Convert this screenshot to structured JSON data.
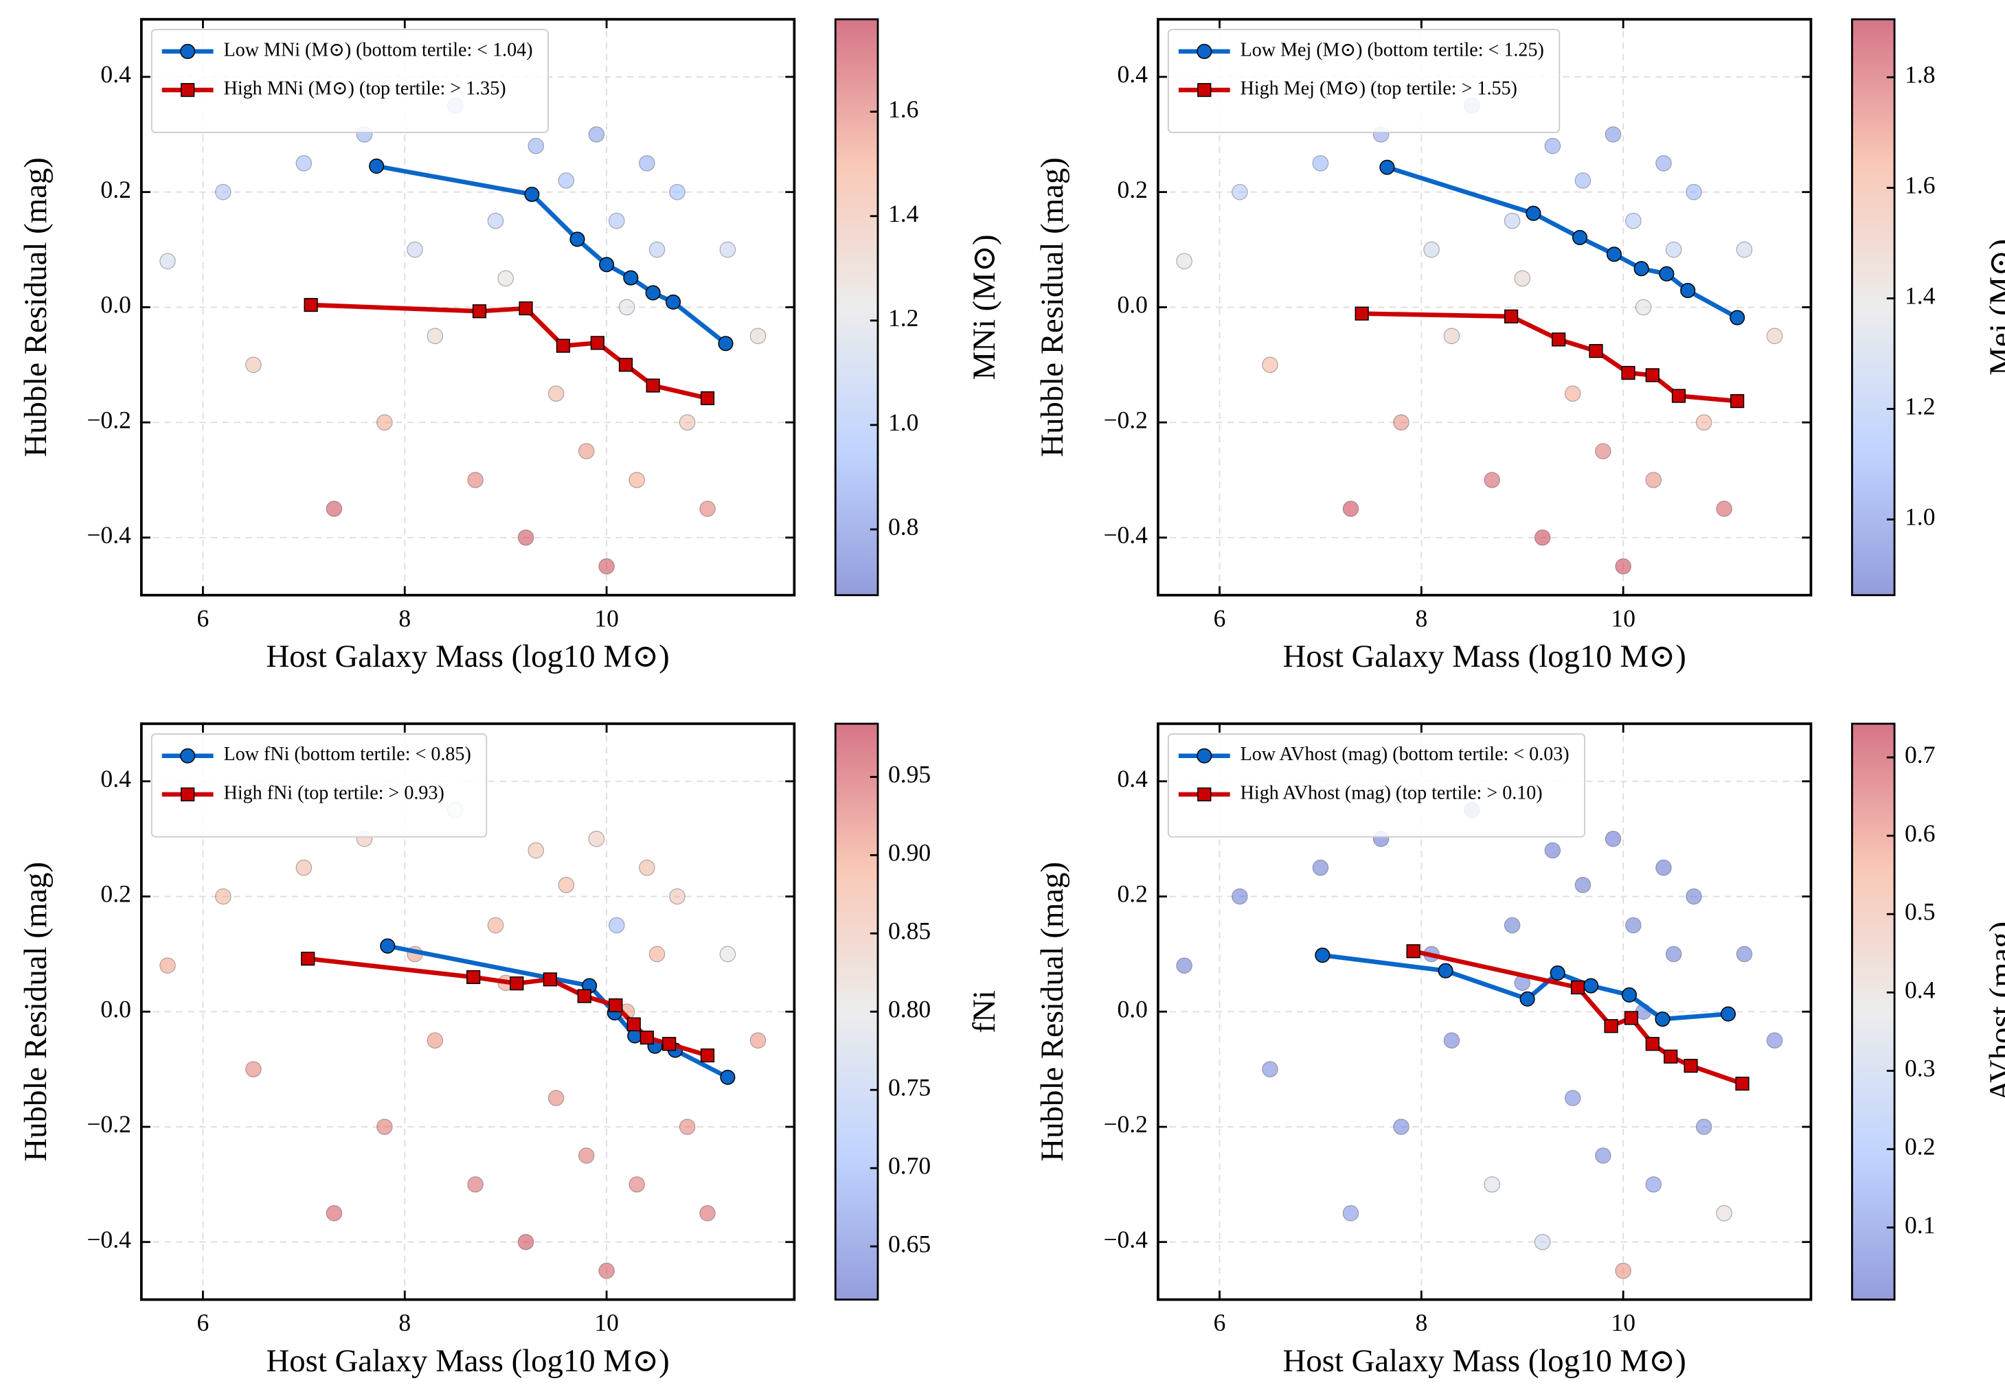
{
  "chart_data": [
    {
      "type": "scatter",
      "xlabel": "Host Galaxy Mass (log10 M⊙)",
      "ylabel": "Hubble Residual (mag)",
      "colorbar_label": "MNi (M⊙)",
      "xlim": [
        5.39,
        11.86
      ],
      "ylim": [
        -0.5,
        0.5
      ],
      "xticks": [
        6,
        8,
        10
      ],
      "yticks": [
        {
          "value": -0.4,
          "label": "−0.4"
        },
        {
          "value": -0.2,
          "label": "−0.2"
        },
        {
          "value": 0,
          "label": "0.0"
        },
        0.2,
        0.4
      ],
      "clim": [
        0.674,
        1.777
      ],
      "cticks": [
        0.8,
        {
          "value": 1,
          "label": "1.0"
        },
        1.2,
        1.4,
        1.6
      ],
      "colormap": "coolwarm",
      "grid": true,
      "legend": "upper left",
      "points": {
        "x": [
          5.65,
          6.2,
          6.5,
          7.0,
          7.3,
          7.6,
          7.8,
          8.1,
          8.3,
          8.5,
          8.7,
          8.9,
          9.0,
          9.2,
          9.3,
          9.5,
          9.6,
          9.8,
          9.9,
          10.0,
          10.1,
          10.2,
          10.3,
          10.4,
          10.5,
          10.7,
          10.8,
          11.0,
          11.2,
          11.5
        ],
        "y": [
          0.08,
          0.2,
          -0.1,
          0.25,
          -0.35,
          0.3,
          -0.2,
          0.1,
          -0.05,
          0.35,
          -0.3,
          0.15,
          0.05,
          -0.4,
          0.28,
          -0.15,
          0.22,
          -0.25,
          0.3,
          -0.45,
          0.15,
          0.0,
          -0.3,
          0.25,
          0.1,
          0.2,
          -0.2,
          -0.35,
          0.1,
          -0.05
        ],
        "c": [
          1.15,
          1.0,
          1.4,
          0.95,
          1.7,
          0.9,
          1.5,
          1.1,
          1.3,
          0.85,
          1.6,
          1.05,
          1.25,
          1.7,
          0.9,
          1.45,
          0.95,
          1.55,
          0.85,
          1.7,
          1.0,
          1.2,
          1.5,
          0.9,
          1.05,
          0.95,
          1.4,
          1.6,
          1.1,
          1.3
        ]
      },
      "series": [
        {
          "name": "Low MNi (M⊙) (bottom tertile: < 1.04)",
          "color": "#0a66c8",
          "marker": "circle",
          "x": [
            7.72,
            9.26,
            9.71,
            10.0,
            10.24,
            10.46,
            10.66,
            11.18
          ],
          "values": [
            0.245,
            0.196,
            0.118,
            0.074,
            0.051,
            0.025,
            0.009,
            -0.063
          ]
        },
        {
          "name": "High MNi (M⊙) (top tertile: > 1.35)",
          "color": "#cc0000",
          "marker": "square",
          "x": [
            7.07,
            8.74,
            9.2,
            9.57,
            9.91,
            10.19,
            10.46,
            11.0
          ],
          "values": [
            0.004,
            -0.007,
            -0.002,
            -0.067,
            -0.062,
            -0.1,
            -0.136,
            -0.158
          ]
        }
      ]
    },
    {
      "type": "scatter",
      "xlabel": "Host Galaxy Mass (log10 M⊙)",
      "ylabel": "Hubble Residual (mag)",
      "colorbar_label": "Mej (M⊙)",
      "xlim": [
        5.39,
        11.86
      ],
      "ylim": [
        -0.5,
        0.5
      ],
      "xticks": [
        6,
        8,
        10
      ],
      "yticks": [
        {
          "value": -0.4,
          "label": "−0.4"
        },
        {
          "value": -0.2,
          "label": "−0.2"
        },
        {
          "value": 0,
          "label": "0.0"
        },
        0.2,
        0.4
      ],
      "clim": [
        0.863,
        1.905
      ],
      "cticks": [
        {
          "value": 1,
          "label": "1.0"
        },
        1.2,
        1.4,
        1.6,
        1.8
      ],
      "colormap": "coolwarm",
      "grid": true,
      "legend": "upper left",
      "points": {
        "x": [
          5.65,
          6.2,
          6.5,
          7.0,
          7.3,
          7.6,
          7.8,
          8.1,
          8.3,
          8.5,
          8.7,
          8.9,
          9.0,
          9.2,
          9.3,
          9.5,
          9.6,
          9.8,
          9.9,
          10.0,
          10.1,
          10.2,
          10.3,
          10.4,
          10.5,
          10.7,
          10.8,
          11.0,
          11.2,
          11.5
        ],
        "y": [
          0.08,
          0.2,
          -0.1,
          0.25,
          -0.35,
          0.3,
          -0.2,
          0.1,
          -0.05,
          0.35,
          -0.3,
          0.15,
          0.05,
          -0.4,
          0.28,
          -0.15,
          0.22,
          -0.25,
          0.3,
          -0.45,
          0.15,
          0.0,
          -0.3,
          0.25,
          0.1,
          0.2,
          -0.2,
          -0.35,
          0.1,
          -0.05
        ],
        "c": [
          1.4,
          1.2,
          1.6,
          1.1,
          1.85,
          1.05,
          1.7,
          1.3,
          1.5,
          1.0,
          1.8,
          1.25,
          1.45,
          1.85,
          1.05,
          1.65,
          1.1,
          1.75,
          1.0,
          1.85,
          1.2,
          1.4,
          1.7,
          1.05,
          1.25,
          1.1,
          1.6,
          1.8,
          1.3,
          1.5
        ]
      },
      "series": [
        {
          "name": "Low Mej (M⊙) (bottom tertile: < 1.25)",
          "color": "#0a66c8",
          "marker": "circle",
          "x": [
            7.66,
            9.11,
            9.57,
            9.91,
            10.18,
            10.43,
            10.64,
            11.13
          ],
          "values": [
            0.243,
            0.163,
            0.121,
            0.092,
            0.067,
            0.058,
            0.029,
            -0.018
          ]
        },
        {
          "name": "High Mej (M⊙) (top tertile: > 1.55)",
          "color": "#cc0000",
          "marker": "square",
          "x": [
            7.41,
            8.89,
            9.36,
            9.73,
            10.05,
            10.29,
            10.55,
            11.13
          ],
          "values": [
            -0.011,
            -0.016,
            -0.056,
            -0.076,
            -0.114,
            -0.118,
            -0.154,
            -0.163
          ]
        }
      ]
    },
    {
      "type": "scatter",
      "xlabel": "Host Galaxy Mass (log10 M⊙)",
      "ylabel": "Hubble Residual (mag)",
      "colorbar_label": "fNi",
      "xlim": [
        5.39,
        11.86
      ],
      "ylim": [
        -0.5,
        0.5
      ],
      "xticks": [
        6,
        8,
        10
      ],
      "yticks": [
        {
          "value": -0.4,
          "label": "−0.4"
        },
        {
          "value": -0.2,
          "label": "−0.2"
        },
        {
          "value": 0,
          "label": "0.0"
        },
        0.2,
        0.4
      ],
      "clim": [
        0.616,
        0.984
      ],
      "cticks": [
        0.65,
        {
          "value": 0.7,
          "label": "0.70"
        },
        0.75,
        {
          "value": 0.8,
          "label": "0.80"
        },
        0.85,
        {
          "value": 0.9,
          "label": "0.90"
        },
        0.95
      ],
      "colormap": "coolwarm",
      "grid": true,
      "legend": "upper left",
      "points": {
        "x": [
          5.65,
          6.2,
          6.5,
          7.0,
          7.3,
          7.6,
          7.8,
          8.1,
          8.3,
          8.5,
          8.7,
          8.9,
          9.0,
          9.2,
          9.3,
          9.5,
          9.6,
          9.8,
          9.9,
          10.0,
          10.1,
          10.2,
          10.3,
          10.4,
          10.5,
          10.7,
          10.8,
          11.0,
          11.2,
          11.5
        ],
        "y": [
          0.08,
          0.2,
          -0.1,
          0.25,
          -0.35,
          0.3,
          -0.2,
          0.1,
          -0.05,
          0.35,
          -0.3,
          0.15,
          0.05,
          -0.4,
          0.28,
          -0.15,
          0.22,
          -0.25,
          0.3,
          -0.45,
          0.15,
          0.0,
          -0.3,
          0.25,
          0.1,
          0.2,
          -0.2,
          -0.35,
          0.1,
          -0.05
        ],
        "c": [
          0.9,
          0.88,
          0.92,
          0.87,
          0.95,
          0.85,
          0.93,
          0.9,
          0.91,
          0.78,
          0.94,
          0.89,
          0.9,
          0.96,
          0.86,
          0.92,
          0.88,
          0.93,
          0.84,
          0.95,
          0.7,
          0.9,
          0.93,
          0.87,
          0.89,
          0.86,
          0.92,
          0.94,
          0.8,
          0.91
        ]
      },
      "series": [
        {
          "name": "Low fNi (bottom tertile: < 0.85)",
          "color": "#0a66c8",
          "marker": "circle",
          "x": [
            7.83,
            9.83,
            10.08,
            10.28,
            10.48,
            10.68,
            11.2
          ],
          "values": [
            0.114,
            0.045,
            -0.002,
            -0.042,
            -0.06,
            -0.067,
            -0.114
          ]
        },
        {
          "name": "High fNi (top tertile: > 0.93)",
          "color": "#cc0000",
          "marker": "square",
          "x": [
            7.04,
            8.68,
            9.11,
            9.44,
            9.78,
            10.09,
            10.27,
            10.4,
            10.62,
            11.0
          ],
          "values": [
            0.092,
            0.06,
            0.049,
            0.056,
            0.027,
            0.011,
            -0.022,
            -0.045,
            -0.056,
            -0.076
          ]
        }
      ]
    },
    {
      "type": "scatter",
      "xlabel": "Host Galaxy Mass (log10 M⊙)",
      "ylabel": "Hubble Residual (mag)",
      "colorbar_label": "AVhost (mag)",
      "xlim": [
        5.39,
        11.86
      ],
      "ylim": [
        -0.5,
        0.5
      ],
      "xticks": [
        6,
        8,
        10
      ],
      "yticks": [
        {
          "value": -0.4,
          "label": "−0.4"
        },
        {
          "value": -0.2,
          "label": "−0.2"
        },
        {
          "value": 0,
          "label": "0.0"
        },
        0.2,
        0.4
      ],
      "clim": [
        0.008,
        0.743
      ],
      "cticks": [
        0.1,
        0.2,
        0.3,
        0.4,
        0.5,
        0.6,
        0.7
      ],
      "colormap": "coolwarm",
      "grid": true,
      "legend": "upper left",
      "points": {
        "x": [
          5.65,
          6.2,
          6.5,
          7.0,
          7.3,
          7.6,
          7.8,
          8.1,
          8.3,
          8.5,
          8.7,
          8.9,
          9.0,
          9.2,
          9.3,
          9.5,
          9.6,
          9.8,
          9.9,
          10.0,
          10.1,
          10.2,
          10.3,
          10.4,
          10.5,
          10.7,
          10.8,
          11.0,
          11.2,
          11.5
        ],
        "y": [
          0.08,
          0.2,
          -0.1,
          0.25,
          -0.35,
          0.3,
          -0.2,
          0.1,
          -0.05,
          0.35,
          -0.3,
          0.15,
          0.05,
          -0.4,
          0.28,
          -0.15,
          0.22,
          -0.25,
          0.3,
          -0.45,
          0.15,
          0.0,
          -0.3,
          0.25,
          0.1,
          0.2,
          -0.2,
          -0.35,
          0.1,
          -0.05
        ],
        "c": [
          0.05,
          0.06,
          0.08,
          0.05,
          0.1,
          0.04,
          0.07,
          0.05,
          0.06,
          0.04,
          0.35,
          0.05,
          0.06,
          0.3,
          0.04,
          0.08,
          0.05,
          0.07,
          0.04,
          0.6,
          0.05,
          0.06,
          0.1,
          0.04,
          0.05,
          0.05,
          0.08,
          0.4,
          0.06,
          0.07
        ]
      },
      "series": [
        {
          "name": "Low AVhost (mag) (bottom tertile: < 0.03)",
          "color": "#0a66c8",
          "marker": "circle",
          "x": [
            7.02,
            8.24,
            9.05,
            9.35,
            9.68,
            10.06,
            10.39,
            11.04
          ],
          "values": [
            0.098,
            0.071,
            0.022,
            0.067,
            0.045,
            0.029,
            -0.013,
            -0.004
          ]
        },
        {
          "name": "High AVhost (mag) (top tertile: > 0.10)",
          "color": "#cc0000",
          "marker": "square",
          "x": [
            7.92,
            9.55,
            9.88,
            10.08,
            10.29,
            10.47,
            10.67,
            11.18
          ],
          "values": [
            0.105,
            0.042,
            -0.025,
            -0.011,
            -0.056,
            -0.078,
            -0.094,
            -0.125
          ]
        }
      ]
    }
  ]
}
